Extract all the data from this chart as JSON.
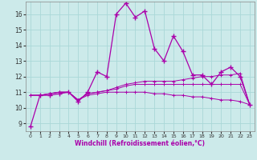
{
  "xlabel": "Windchill (Refroidissement éolien,°C)",
  "background_color": "#cceaea",
  "line_color": "#aa00aa",
  "grid_color": "#aad8d8",
  "x_ticks": [
    0,
    1,
    2,
    3,
    4,
    5,
    6,
    7,
    8,
    9,
    10,
    11,
    12,
    13,
    14,
    15,
    16,
    17,
    18,
    19,
    20,
    21,
    22,
    23
  ],
  "y_ticks": [
    9,
    10,
    11,
    12,
    13,
    14,
    15,
    16
  ],
  "ylim": [
    8.5,
    16.8
  ],
  "xlim": [
    -0.5,
    23.5
  ],
  "series": [
    [
      8.8,
      10.8,
      10.8,
      10.9,
      11.0,
      10.4,
      11.0,
      12.3,
      12.0,
      16.0,
      16.7,
      15.8,
      16.2,
      13.8,
      13.0,
      14.6,
      13.6,
      12.1,
      12.1,
      11.5,
      12.3,
      12.6,
      12.0,
      10.2
    ],
    [
      10.8,
      10.8,
      10.9,
      11.0,
      11.0,
      10.5,
      10.9,
      11.0,
      11.1,
      11.3,
      11.5,
      11.6,
      11.7,
      11.7,
      11.7,
      11.7,
      11.8,
      11.9,
      12.0,
      12.0,
      12.1,
      12.1,
      12.2,
      10.2
    ],
    [
      10.8,
      10.8,
      10.9,
      11.0,
      11.0,
      10.5,
      10.9,
      11.0,
      11.1,
      11.2,
      11.4,
      11.5,
      11.5,
      11.5,
      11.5,
      11.5,
      11.5,
      11.5,
      11.5,
      11.5,
      11.5,
      11.5,
      11.5,
      10.2
    ],
    [
      10.8,
      10.8,
      10.9,
      11.0,
      11.0,
      10.5,
      10.8,
      10.9,
      11.0,
      11.0,
      11.0,
      11.0,
      11.0,
      10.9,
      10.9,
      10.8,
      10.8,
      10.7,
      10.7,
      10.6,
      10.5,
      10.5,
      10.4,
      10.2
    ]
  ]
}
